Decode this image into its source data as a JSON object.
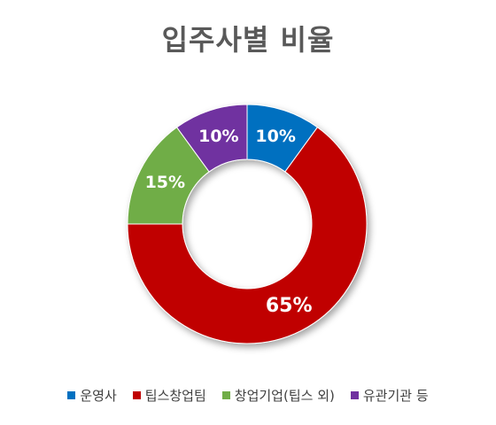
{
  "chart_data": {
    "type": "pie",
    "title": "입주사별 비율",
    "categories": [
      "운영사",
      "팁스창업팀",
      "창업기업(팁스 외)",
      "유관기관 등"
    ],
    "values": [
      10,
      65,
      15,
      10
    ],
    "data_labels": [
      "10%",
      "65%",
      "15%",
      "10%"
    ],
    "colors": [
      "#0070C0",
      "#C00000",
      "#70AD47",
      "#7030A0"
    ],
    "donut": true,
    "legend_position": "bottom"
  }
}
